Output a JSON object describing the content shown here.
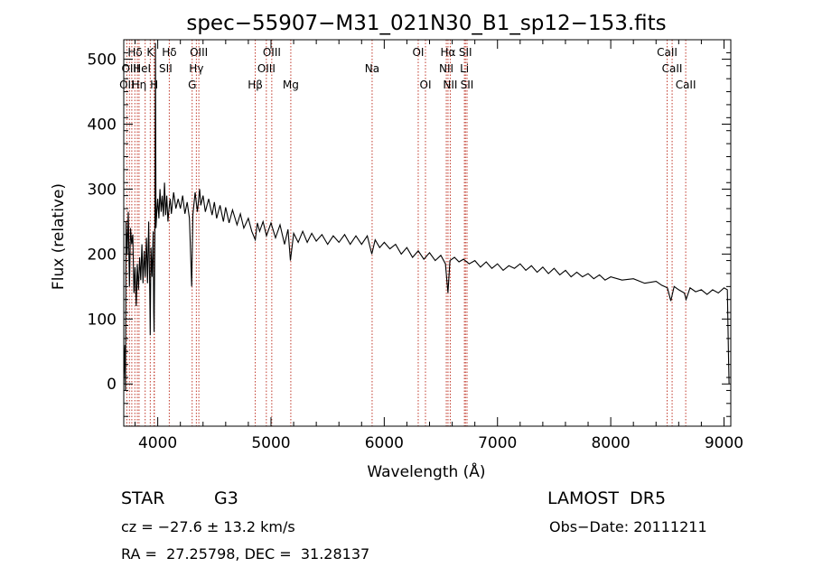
{
  "chart_data": {
    "type": "line",
    "title": "spec−55907−M31_021N30_B1_sp12−153.fits",
    "xlabel": "Wavelength (Å)",
    "ylabel": "Flux (relative)",
    "xlim": [
      3700,
      9060
    ],
    "ylim": [
      -65,
      530
    ],
    "xticks": [
      4000,
      5000,
      6000,
      7000,
      8000,
      9000
    ],
    "yticks": [
      0,
      100,
      200,
      300,
      400,
      500
    ],
    "grid": false,
    "series": [
      {
        "color": "#000000",
        "points": [
          [
            3700,
            0
          ],
          [
            3710,
            60
          ],
          [
            3715,
            -10
          ],
          [
            3720,
            250
          ],
          [
            3730,
            200
          ],
          [
            3740,
            265
          ],
          [
            3750,
            150
          ],
          [
            3760,
            240
          ],
          [
            3770,
            215
          ],
          [
            3780,
            230
          ],
          [
            3790,
            140
          ],
          [
            3800,
            180
          ],
          [
            3810,
            120
          ],
          [
            3820,
            185
          ],
          [
            3830,
            145
          ],
          [
            3840,
            195
          ],
          [
            3850,
            160
          ],
          [
            3860,
            215
          ],
          [
            3870,
            155
          ],
          [
            3880,
            205
          ],
          [
            3890,
            165
          ],
          [
            3900,
            225
          ],
          [
            3910,
            155
          ],
          [
            3920,
            250
          ],
          [
            3930,
            140
          ],
          [
            3934,
            75
          ],
          [
            3940,
            210
          ],
          [
            3950,
            165
          ],
          [
            3960,
            235
          ],
          [
            3965,
            110
          ],
          [
            3968,
            80
          ],
          [
            3975,
            225
          ],
          [
            3980,
            525
          ],
          [
            3985,
            240
          ],
          [
            3990,
            260
          ],
          [
            4000,
            285
          ],
          [
            4010,
            255
          ],
          [
            4020,
            300
          ],
          [
            4030,
            265
          ],
          [
            4040,
            290
          ],
          [
            4050,
            258
          ],
          [
            4060,
            310
          ],
          [
            4070,
            260
          ],
          [
            4080,
            290
          ],
          [
            4090,
            250
          ],
          [
            4100,
            270
          ],
          [
            4110,
            285
          ],
          [
            4120,
            262
          ],
          [
            4140,
            295
          ],
          [
            4160,
            270
          ],
          [
            4180,
            285
          ],
          [
            4200,
            270
          ],
          [
            4220,
            290
          ],
          [
            4240,
            262
          ],
          [
            4260,
            280
          ],
          [
            4280,
            255
          ],
          [
            4300,
            150
          ],
          [
            4310,
            260
          ],
          [
            4330,
            295
          ],
          [
            4350,
            265
          ],
          [
            4370,
            300
          ],
          [
            4380,
            275
          ],
          [
            4400,
            290
          ],
          [
            4420,
            265
          ],
          [
            4450,
            285
          ],
          [
            4480,
            260
          ],
          [
            4500,
            280
          ],
          [
            4520,
            255
          ],
          [
            4550,
            275
          ],
          [
            4580,
            250
          ],
          [
            4600,
            272
          ],
          [
            4630,
            248
          ],
          [
            4660,
            268
          ],
          [
            4700,
            245
          ],
          [
            4730,
            262
          ],
          [
            4760,
            240
          ],
          [
            4800,
            255
          ],
          [
            4830,
            235
          ],
          [
            4861,
            222
          ],
          [
            4880,
            248
          ],
          [
            4900,
            235
          ],
          [
            4930,
            250
          ],
          [
            4960,
            228
          ],
          [
            5000,
            248
          ],
          [
            5040,
            225
          ],
          [
            5080,
            245
          ],
          [
            5120,
            215
          ],
          [
            5150,
            238
          ],
          [
            5172,
            190
          ],
          [
            5200,
            232
          ],
          [
            5240,
            218
          ],
          [
            5280,
            235
          ],
          [
            5320,
            218
          ],
          [
            5360,
            232
          ],
          [
            5400,
            220
          ],
          [
            5450,
            230
          ],
          [
            5500,
            215
          ],
          [
            5550,
            228
          ],
          [
            5600,
            218
          ],
          [
            5650,
            230
          ],
          [
            5700,
            215
          ],
          [
            5750,
            228
          ],
          [
            5800,
            215
          ],
          [
            5850,
            228
          ],
          [
            5890,
            200
          ],
          [
            5920,
            222
          ],
          [
            5960,
            210
          ],
          [
            6000,
            218
          ],
          [
            6050,
            208
          ],
          [
            6100,
            215
          ],
          [
            6150,
            200
          ],
          [
            6200,
            210
          ],
          [
            6250,
            195
          ],
          [
            6300,
            205
          ],
          [
            6350,
            192
          ],
          [
            6400,
            202
          ],
          [
            6450,
            190
          ],
          [
            6500,
            198
          ],
          [
            6540,
            185
          ],
          [
            6563,
            140
          ],
          [
            6580,
            190
          ],
          [
            6620,
            195
          ],
          [
            6660,
            188
          ],
          [
            6700,
            192
          ],
          [
            6750,
            185
          ],
          [
            6800,
            190
          ],
          [
            6850,
            180
          ],
          [
            6900,
            188
          ],
          [
            6950,
            178
          ],
          [
            7000,
            185
          ],
          [
            7050,
            175
          ],
          [
            7100,
            182
          ],
          [
            7150,
            178
          ],
          [
            7200,
            185
          ],
          [
            7250,
            175
          ],
          [
            7300,
            182
          ],
          [
            7350,
            172
          ],
          [
            7400,
            180
          ],
          [
            7450,
            170
          ],
          [
            7500,
            178
          ],
          [
            7550,
            168
          ],
          [
            7600,
            175
          ],
          [
            7650,
            165
          ],
          [
            7700,
            172
          ],
          [
            7750,
            165
          ],
          [
            7800,
            170
          ],
          [
            7850,
            162
          ],
          [
            7900,
            168
          ],
          [
            7950,
            160
          ],
          [
            8000,
            165
          ],
          [
            8100,
            160
          ],
          [
            8200,
            162
          ],
          [
            8300,
            155
          ],
          [
            8400,
            158
          ],
          [
            8450,
            152
          ],
          [
            8500,
            148
          ],
          [
            8530,
            128
          ],
          [
            8560,
            150
          ],
          [
            8600,
            145
          ],
          [
            8650,
            140
          ],
          [
            8665,
            130
          ],
          [
            8700,
            148
          ],
          [
            8750,
            142
          ],
          [
            8800,
            145
          ],
          [
            8850,
            138
          ],
          [
            8900,
            145
          ],
          [
            8950,
            140
          ],
          [
            9000,
            148
          ],
          [
            9030,
            145
          ],
          [
            9040,
            40
          ],
          [
            9045,
            0
          ]
        ]
      }
    ],
    "lines": {
      "color": "#c0392b",
      "wavelengths": [
        3727,
        3750,
        3771,
        3798,
        3820,
        3835,
        3889,
        3934,
        3968,
        3970,
        4102,
        4304,
        4341,
        4363,
        4861,
        4959,
        5007,
        5175,
        5893,
        6300,
        6364,
        6548,
        6563,
        6583,
        6708,
        6717,
        6731,
        8498,
        8542,
        8662
      ],
      "labels": [
        {
          "text": "Hδ",
          "x": 3800,
          "row": 1
        },
        {
          "text": "K",
          "x": 3934,
          "row": 1
        },
        {
          "text": "Hδ",
          "x": 4102,
          "row": 1
        },
        {
          "text": "OIII",
          "x": 4363,
          "row": 1
        },
        {
          "text": "OIII",
          "x": 5007,
          "row": 1
        },
        {
          "text": "OI",
          "x": 6300,
          "row": 1
        },
        {
          "text": "Hα",
          "x": 6563,
          "row": 1
        },
        {
          "text": "SII",
          "x": 6717,
          "row": 1
        },
        {
          "text": "CaII",
          "x": 8498,
          "row": 1
        },
        {
          "text": "OIII",
          "x": 3760,
          "row": 2
        },
        {
          "text": "HeI",
          "x": 3860,
          "row": 2
        },
        {
          "text": "SII",
          "x": 4070,
          "row": 2
        },
        {
          "text": "Hγ",
          "x": 4341,
          "row": 2
        },
        {
          "text": "OIII",
          "x": 4959,
          "row": 2
        },
        {
          "text": "Na",
          "x": 5893,
          "row": 2
        },
        {
          "text": "NII",
          "x": 6548,
          "row": 2
        },
        {
          "text": "Li",
          "x": 6708,
          "row": 2
        },
        {
          "text": "CaII",
          "x": 8542,
          "row": 2
        },
        {
          "text": "OII",
          "x": 3727,
          "row": 3
        },
        {
          "text": "Hη",
          "x": 3835,
          "row": 3
        },
        {
          "text": "H",
          "x": 3968,
          "row": 3
        },
        {
          "text": "G",
          "x": 4304,
          "row": 3
        },
        {
          "text": "Hβ",
          "x": 4861,
          "row": 3
        },
        {
          "text": "Mg",
          "x": 5175,
          "row": 3
        },
        {
          "text": "OI",
          "x": 6364,
          "row": 3
        },
        {
          "text": "NII",
          "x": 6583,
          "row": 3
        },
        {
          "text": "SII",
          "x": 6731,
          "row": 3
        },
        {
          "text": "CaII",
          "x": 8662,
          "row": 3
        }
      ]
    }
  },
  "info": {
    "class_label": "STAR",
    "subclass": "G3",
    "survey": "LAMOST  DR5",
    "redshift": "cz = −27.6 ± 13.2 km/s",
    "obs_date": "Obs−Date: 20111211",
    "coords": "RA =  27.25798, DEC =  31.28137"
  }
}
